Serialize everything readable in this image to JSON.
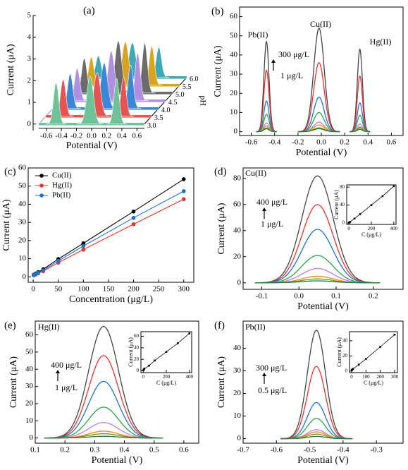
{
  "chart_data": [
    {
      "type": "waterfall",
      "label": "(a)",
      "xlabel": "Potential (V)",
      "ylabel": "Current (μA)",
      "zlabel": "pH",
      "categories": [
        "3.0",
        "3.5",
        "4.0",
        "4.5",
        "5.0",
        "5.5",
        "6.0"
      ],
      "x": [
        -0.47,
        -0.02,
        0.33
      ],
      "series": [
        {
          "color": "#6cc299",
          "values": [
            1.9,
            2.2,
            2.1
          ]
        },
        {
          "color": "#e8534f",
          "values": [
            1.7,
            2.0,
            1.8
          ]
        },
        {
          "color": "#3c86d6",
          "values": [
            1.6,
            2.1,
            2.0
          ]
        },
        {
          "color": "#b08ee0",
          "values": [
            1.5,
            2.3,
            2.2
          ]
        },
        {
          "color": "#6b6b6b",
          "values": [
            1.6,
            2.4,
            2.3
          ]
        },
        {
          "color": "#d8a31d",
          "values": [
            1.3,
            2.0,
            1.8
          ]
        },
        {
          "color": "#3fa8b5",
          "values": [
            1.0,
            1.6,
            1.4
          ]
        }
      ],
      "xlim": [
        -0.7,
        0.7
      ],
      "xticks": [
        -0.6,
        -0.4,
        -0.2,
        {
          "value": 0,
          "label": "0.0"
        },
        0.2,
        0.4,
        0.6
      ],
      "ylim": [
        -0.3,
        5
      ],
      "yticks": [
        0,
        1,
        2,
        3,
        4,
        5
      ]
    },
    {
      "type": "peaks",
      "label": "(b)",
      "xlabel": "Potential (V)",
      "ylabel": "Current (μA)",
      "annotations": [
        "Pb(II)",
        "Cu(II)",
        "Hg(II)",
        "300 μg/L",
        "1 μg/L"
      ],
      "x": [
        -0.47,
        -0.02,
        0.33
      ],
      "series": [
        {
          "color": "#444444",
          "values": [
            47,
            54,
            43
          ]
        },
        {
          "color": "#e8312f",
          "values": [
            32,
            36,
            29
          ]
        },
        {
          "color": "#1f6fd1",
          "values": [
            16,
            18,
            15
          ]
        },
        {
          "color": "#2aa34a",
          "values": [
            9,
            10,
            8.5
          ]
        },
        {
          "color": "#b97fd9",
          "values": [
            4.5,
            5,
            4
          ]
        },
        {
          "color": "#f08a1c",
          "values": [
            3,
            3.5,
            2.5
          ]
        },
        {
          "color": "#8a8a1a",
          "values": [
            2,
            2,
            2
          ]
        },
        {
          "color": "#1b7f3a",
          "values": [
            1.5,
            1.5,
            1.2
          ]
        }
      ],
      "xlim": [
        -0.7,
        0.7
      ],
      "xticks": [
        -0.6,
        -0.4,
        -0.2,
        {
          "value": 0,
          "label": "0.0"
        },
        0.2,
        0.4,
        0.6
      ],
      "ylim": [
        -2,
        65
      ],
      "yticks": [
        0,
        10,
        20,
        30,
        40,
        50,
        60
      ]
    },
    {
      "type": "scatter_line",
      "label": "(c)",
      "xlabel": "Concentration (μg/L)",
      "ylabel": "Current (μA)",
      "legend": "upper left",
      "x": [
        1,
        5,
        10,
        20,
        50,
        100,
        200,
        300
      ],
      "series": [
        {
          "name": "Cu(II)",
          "color": "#000000",
          "values": [
            1.2,
            1.8,
            2.6,
            4.2,
            9.8,
            18.5,
            36,
            53.8
          ],
          "errors": [
            0.2,
            0.2,
            0.2,
            0.3,
            0.5,
            0.7,
            0.9,
            1.0
          ]
        },
        {
          "name": "Hg(II)",
          "color": "#e8312f",
          "values": [
            0.8,
            1.3,
            1.9,
            3.1,
            7.8,
            15,
            29,
            42.8
          ],
          "errors": [
            0.2,
            0.2,
            0.2,
            0.3,
            0.4,
            0.6,
            0.8,
            1.1
          ]
        },
        {
          "name": "Pb(II)",
          "color": "#1f6fd1",
          "values": [
            1.0,
            1.5,
            2.2,
            3.6,
            8.8,
            17,
            32.5,
            47.2
          ],
          "errors": [
            0.2,
            0.2,
            0.2,
            0.3,
            0.5,
            0.6,
            0.9,
            1.1
          ]
        }
      ],
      "xlim": [
        -10,
        320
      ],
      "xticks": [
        0,
        50,
        100,
        150,
        200,
        250,
        300
      ],
      "ylim": [
        -3,
        60
      ],
      "yticks": [
        0,
        10,
        20,
        30,
        40,
        50,
        60
      ]
    },
    {
      "type": "peaks",
      "label": "(d)",
      "xlabel": "Potential (V)",
      "ylabel": "Current (μA)",
      "annotations": [
        "Cu(II)",
        "400 μg/L",
        "1 μg/L"
      ],
      "x": [
        0.05
      ],
      "series": [
        {
          "color": "#444444",
          "values": [
            82
          ]
        },
        {
          "color": "#e8312f",
          "values": [
            60
          ]
        },
        {
          "color": "#1f6fd1",
          "values": [
            41
          ]
        },
        {
          "color": "#2aa34a",
          "values": [
            21
          ]
        },
        {
          "color": "#b97fd9",
          "values": [
            11
          ]
        },
        {
          "color": "#f08a1c",
          "values": [
            5
          ]
        },
        {
          "color": "#8a8a1a",
          "values": [
            3
          ]
        },
        {
          "color": "#1b7f3a",
          "values": [
            1.5
          ]
        }
      ],
      "xlim": [
        -0.15,
        0.28
      ],
      "xticks": [
        -0.1,
        {
          "value": 0,
          "label": "0.0"
        },
        0.1,
        0.2
      ],
      "ylim": [
        -5,
        88
      ],
      "yticks": [
        0,
        20,
        40,
        60,
        80
      ],
      "inset": {
        "type": "line",
        "xlabel": "C (μg/L)",
        "ylabel": "Current (μA)",
        "x": [
          1,
          5,
          10,
          50,
          100,
          200,
          300,
          400
        ],
        "values": [
          0.8,
          1.5,
          2.5,
          10,
          20,
          40,
          60,
          82
        ],
        "xlim": [
          -20,
          420
        ],
        "xticks": [
          0,
          200,
          400
        ],
        "ylim": [
          -3,
          85
        ],
        "yticks": [
          0,
          40,
          80
        ]
      }
    },
    {
      "type": "peaks",
      "label": "(e)",
      "xlabel": "Potential (V)",
      "ylabel": "Current (μA)",
      "annotations": [
        "Hg(II)",
        "400 μg/L",
        "1 μg/L"
      ],
      "x": [
        0.33
      ],
      "series": [
        {
          "color": "#444444",
          "values": [
            65
          ]
        },
        {
          "color": "#e8312f",
          "values": [
            48
          ]
        },
        {
          "color": "#1f6fd1",
          "values": [
            33
          ]
        },
        {
          "color": "#2aa34a",
          "values": [
            18
          ]
        },
        {
          "color": "#b97fd9",
          "values": [
            9
          ]
        },
        {
          "color": "#f08a1c",
          "values": [
            4
          ]
        },
        {
          "color": "#8a8a1a",
          "values": [
            2.5
          ]
        },
        {
          "color": "#1b7f3a",
          "values": [
            1
          ]
        }
      ],
      "xlim": [
        0.1,
        0.65
      ],
      "xticks": [
        0.1,
        0.2,
        0.3,
        0.4,
        0.5,
        0.6
      ],
      "ylim": [
        -3,
        68
      ],
      "yticks": [
        0,
        10,
        20,
        30,
        40,
        50,
        60
      ],
      "inset": {
        "type": "line",
        "xlabel": "C (μg/L)",
        "ylabel": "Current (μA)",
        "x": [
          1,
          5,
          10,
          50,
          100,
          200,
          300,
          400
        ],
        "values": [
          1,
          2.5,
          4,
          9,
          18,
          33,
          48,
          65
        ],
        "xlim": [
          -20,
          420
        ],
        "xticks": [
          0,
          200,
          400
        ],
        "ylim": [
          -3,
          68
        ],
        "yticks": [
          0,
          20,
          40,
          60
        ]
      }
    },
    {
      "type": "peaks",
      "label": "(f)",
      "xlabel": "Potential (V)",
      "ylabel": "Current (μA)",
      "annotations": [
        "Pb(II)",
        "300 μg/L",
        "0.5 μg/L"
      ],
      "x": [
        -0.48
      ],
      "series": [
        {
          "color": "#444444",
          "values": [
            48
          ]
        },
        {
          "color": "#e8312f",
          "values": [
            32
          ]
        },
        {
          "color": "#1f6fd1",
          "values": [
            16
          ]
        },
        {
          "color": "#2aa34a",
          "values": [
            9
          ]
        },
        {
          "color": "#b97fd9",
          "values": [
            4
          ]
        },
        {
          "color": "#f08a1c",
          "values": [
            3
          ]
        },
        {
          "color": "#8a8a1a",
          "values": [
            2
          ]
        },
        {
          "color": "#1b7f3a",
          "values": [
            1
          ]
        }
      ],
      "xlim": [
        -0.7,
        -0.22
      ],
      "xticks": [
        -0.7,
        -0.6,
        -0.5,
        -0.4,
        -0.3
      ],
      "ylim": [
        -2,
        52
      ],
      "yticks": [
        0,
        10,
        20,
        30,
        40
      ],
      "inset": {
        "type": "line",
        "xlabel": "C (μg/L)",
        "ylabel": "Current (μA)",
        "x": [
          0.5,
          1,
          5,
          10,
          50,
          100,
          200,
          300
        ],
        "values": [
          1,
          1.5,
          2,
          3,
          8.5,
          16,
          32,
          48
        ],
        "xlim": [
          -15,
          320
        ],
        "xticks": [
          0,
          100,
          200,
          300
        ],
        "ylim": [
          -2,
          52
        ],
        "yticks": [
          0,
          20,
          40
        ]
      }
    }
  ]
}
